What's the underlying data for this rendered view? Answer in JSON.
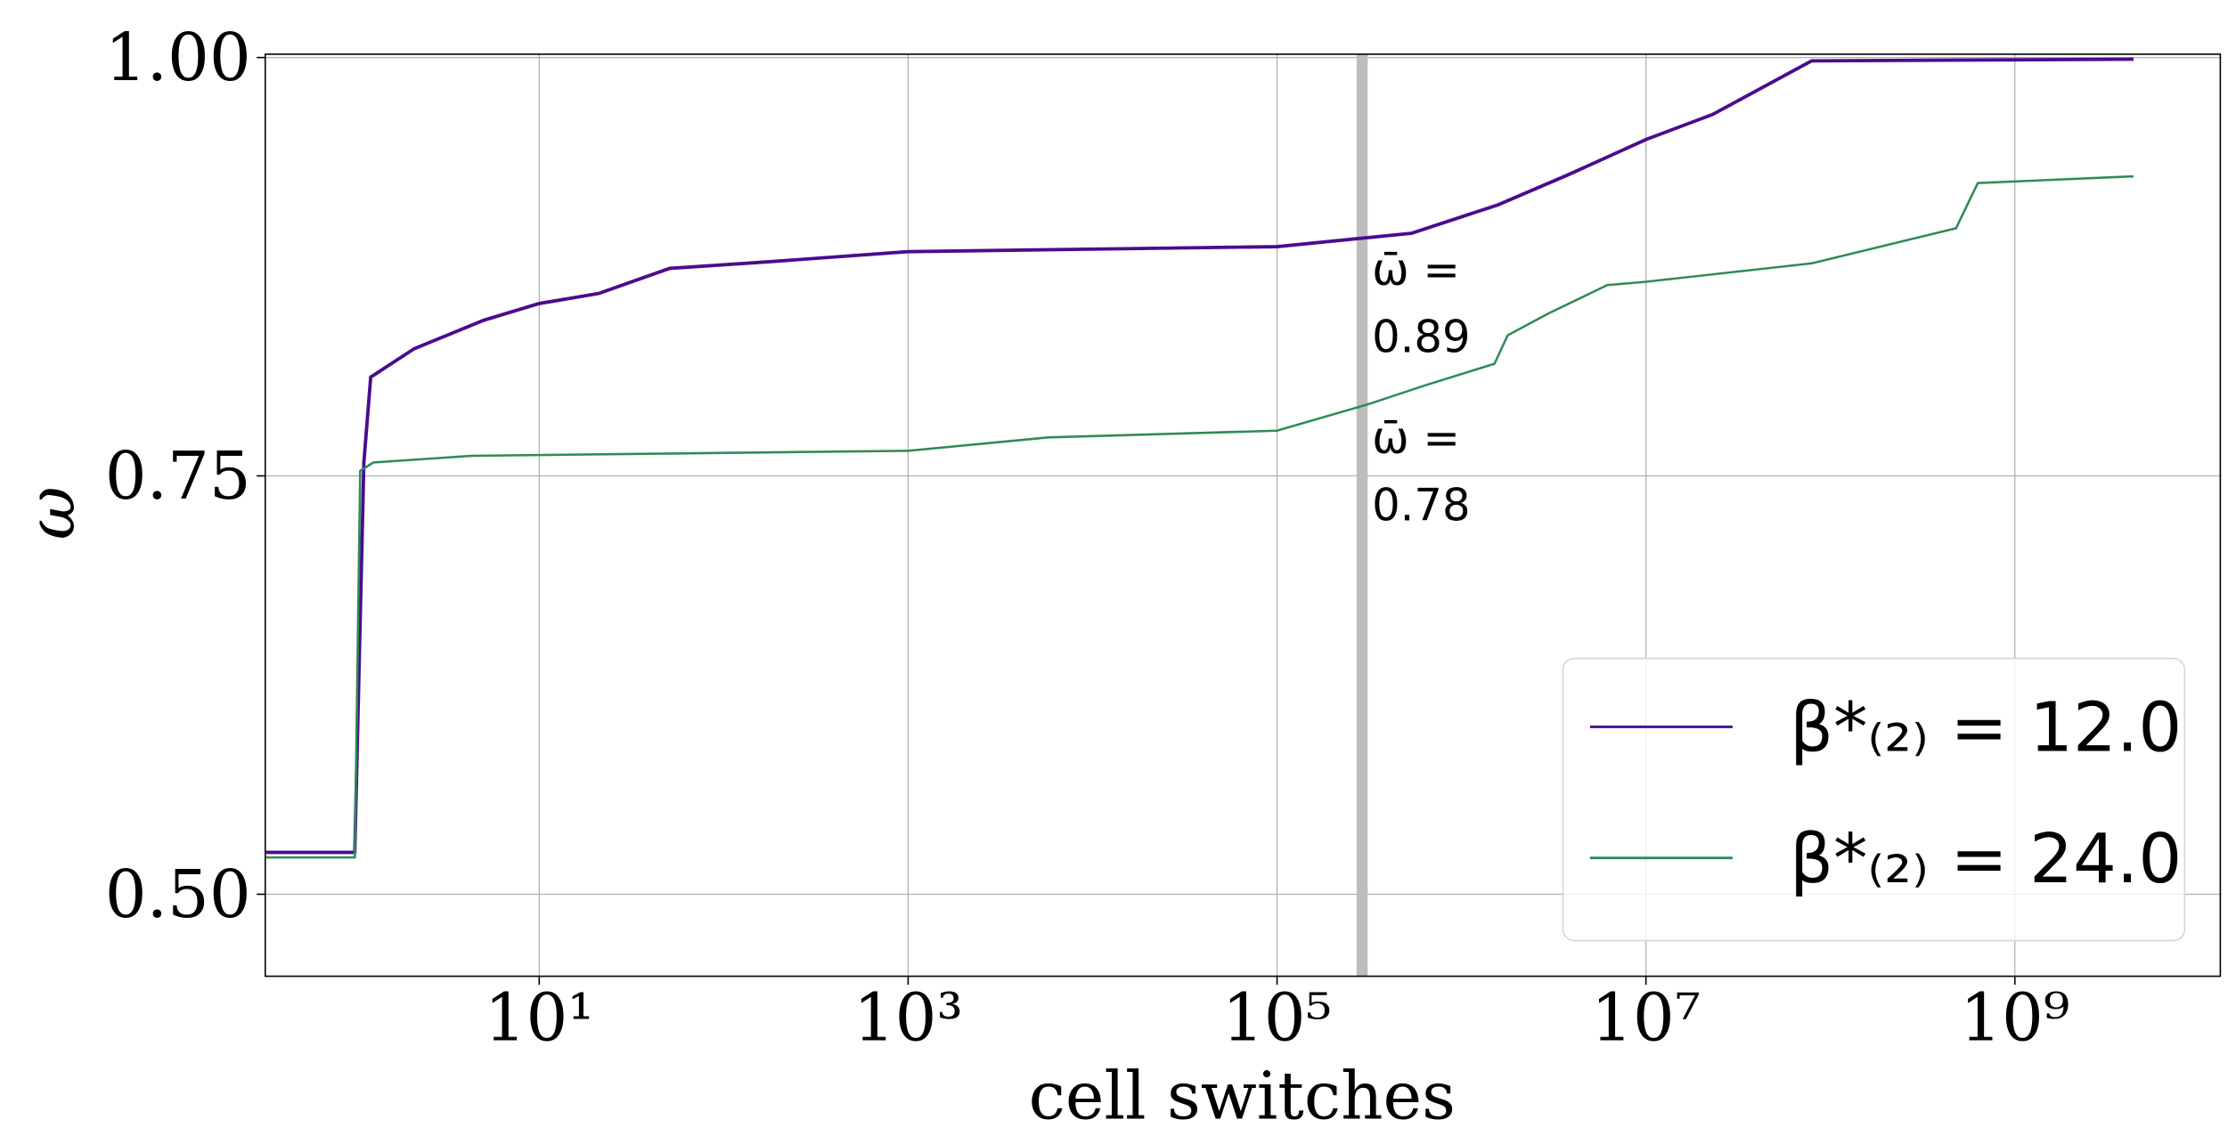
{
  "chart_data": {
    "type": "line",
    "xlabel": "cell switches",
    "ylabel": "ω",
    "xscale": "log",
    "grid": true,
    "legend": "lower right",
    "xlim": [
      0.327,
      13000000000
    ],
    "ylim": [
      0.451,
      1.002
    ],
    "xticks": [
      {
        "value": 10,
        "label": "10¹"
      },
      {
        "value": 1000,
        "label": "10³"
      },
      {
        "value": 100000,
        "label": "10⁵"
      },
      {
        "value": 10000000,
        "label": "10⁷"
      },
      {
        "value": 1000000000,
        "label": "10⁹"
      }
    ],
    "yticks": [
      {
        "value": 0.5,
        "label": "0.50"
      },
      {
        "value": 0.75,
        "label": "0.75"
      },
      {
        "value": 1,
        "label": "1.00"
      }
    ],
    "span": [
      270000,
      310000
    ],
    "span_color": "#bdbdbd",
    "annotations": [
      {
        "symbol": "ω̄ =",
        "value": 0.89
      },
      {
        "symbol": "ω̄ =",
        "value": 0.78
      }
    ],
    "series": [
      {
        "name": "β*₍₂₎ = 12.0",
        "color": "#4b0c8c",
        "x": [
          0.33,
          1,
          1.12,
          1.22,
          2.1,
          5,
          10,
          21,
          51,
          178,
          1000,
          100000,
          537000,
          1580000,
          3800000,
          10000000,
          23000000,
          79000000,
          4400000000
        ],
        "values": [
          0.525,
          0.525,
          0.758,
          0.809,
          0.826,
          0.843,
          0.853,
          0.859,
          0.874,
          0.878,
          0.884,
          0.887,
          0.895,
          0.912,
          0.93,
          0.951,
          0.966,
          0.998,
          0.999
        ]
      },
      {
        "name": "β*₍₂₎ = 24.0",
        "color": "#2e8b57",
        "x": [
          0.33,
          1,
          1.07,
          1.26,
          4.3,
          1000,
          5750,
          100000,
          316000,
          631000,
          1510000,
          1780000,
          2950000,
          6170000,
          10000000,
          79000000,
          480000000,
          630000000,
          4400000000
        ],
        "values": [
          0.522,
          0.522,
          0.753,
          0.758,
          0.762,
          0.765,
          0.773,
          0.777,
          0.793,
          0.804,
          0.817,
          0.834,
          0.847,
          0.864,
          0.866,
          0.877,
          0.898,
          0.925,
          0.929
        ]
      }
    ]
  }
}
